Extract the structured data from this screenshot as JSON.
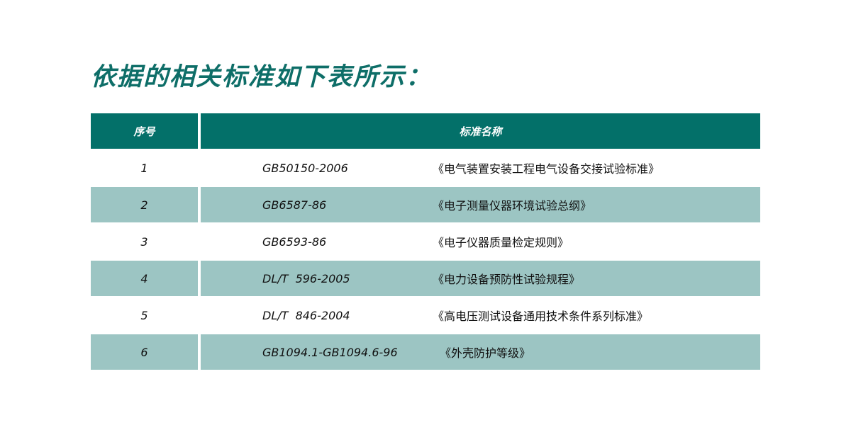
{
  "title": "依据的相关标准如下表所示：",
  "colors": {
    "title": "#0e6e68",
    "header_bg": "#037069",
    "alt_row_bg": "#9cc5c3"
  },
  "table": {
    "headers": [
      "序号",
      "标准名称"
    ],
    "rows": [
      {
        "no": "1",
        "code": "GB50150-2006",
        "name": "《电气装置安装工程电气设备交接试验标准》"
      },
      {
        "no": "2",
        "code": "GB6587-86",
        "name": "《电子测量仪器环境试验总纲》"
      },
      {
        "no": "3",
        "code": "GB6593-86",
        "name": "《电子仪器质量检定规则》"
      },
      {
        "no": "4",
        "code": "DL/T  596-2005",
        "name": "《电力设备预防性试验规程》"
      },
      {
        "no": "5",
        "code": "DL/T  846-2004",
        "name": "《高电压测试设备通用技术条件系列标准》"
      },
      {
        "no": "6",
        "code": "GB1094.1-GB1094.6-96",
        "name": "《外壳防护等级》"
      }
    ]
  }
}
